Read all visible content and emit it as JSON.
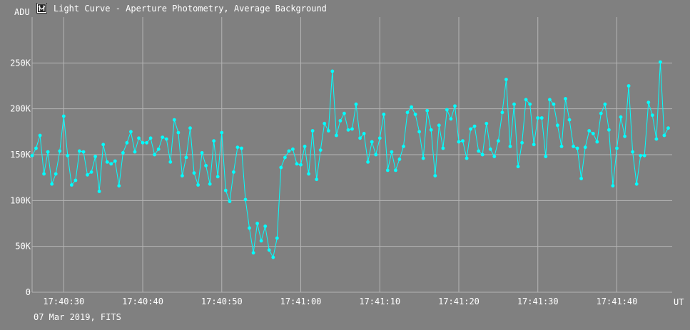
{
  "window": {
    "title": "Light Curve - Aperture Photometry, Average Background",
    "icon": "light-curve-app-icon"
  },
  "footer": {
    "date_source": "07 Mar 2019, FITS"
  },
  "colors": {
    "background": "#808080",
    "grid": "#b4b4b4",
    "series": "#00ffff",
    "text": "#ffffff"
  },
  "chart_data": {
    "type": "line",
    "title": "Light Curve - Aperture Photometry, Average Background",
    "xlabel": "UT",
    "ylabel": "ADU",
    "xlim": [
      "17:40:26.0",
      "17:41:47.0"
    ],
    "ylim": [
      0,
      300000
    ],
    "x_ticks": [
      "17:40:30",
      "17:40:40",
      "17:40:50",
      "17:41:00",
      "17:41:10",
      "17:41:20",
      "17:41:30",
      "17:41:40"
    ],
    "y_ticks": [
      {
        "value": 0,
        "label": "0"
      },
      {
        "value": 50000,
        "label": "50K"
      },
      {
        "value": 100000,
        "label": "100K"
      },
      {
        "value": 150000,
        "label": "150K"
      },
      {
        "value": 200000,
        "label": "200K"
      },
      {
        "value": 250000,
        "label": "250K"
      }
    ],
    "grid": true,
    "series": [
      {
        "markers": "dot",
        "x_start": "17:40:26.0",
        "x_step_seconds": 0.5,
        "values": [
          149000,
          157000,
          171000,
          129000,
          153000,
          118000,
          129000,
          154000,
          192000,
          149000,
          117000,
          122000,
          154000,
          153000,
          128000,
          131000,
          148000,
          110000,
          161000,
          142000,
          140000,
          143000,
          116000,
          152000,
          163000,
          175000,
          153000,
          168000,
          163000,
          163000,
          168000,
          150000,
          156000,
          169000,
          167000,
          142000,
          188000,
          174000,
          127000,
          147000,
          179000,
          130000,
          117000,
          152000,
          138000,
          118000,
          165000,
          126000,
          174000,
          111000,
          99000,
          131000,
          158000,
          157000,
          101000,
          70000,
          43000,
          75000,
          56000,
          72000,
          46000,
          38000,
          59000,
          136000,
          147000,
          154000,
          156000,
          140000,
          139000,
          159000,
          129000,
          176000,
          123000,
          155000,
          184000,
          176000,
          241000,
          171000,
          187000,
          195000,
          177000,
          178000,
          205000,
          168000,
          173000,
          142000,
          164000,
          150000,
          168000,
          194000,
          133000,
          153000,
          133000,
          145000,
          159000,
          196000,
          202000,
          194000,
          175000,
          146000,
          198000,
          177000,
          127000,
          182000,
          157000,
          199000,
          189000,
          203000,
          164000,
          165000,
          146000,
          178000,
          181000,
          154000,
          150000,
          184000,
          156000,
          148000,
          165000,
          196000,
          232000,
          159000,
          205000,
          137000,
          163000,
          210000,
          205000,
          161000,
          190000,
          190000,
          148000,
          210000,
          205000,
          182000,
          159000,
          211000,
          188000,
          159000,
          157000,
          124000,
          158000,
          176000,
          173000,
          164000,
          195000,
          205000,
          177000,
          116000,
          157000,
          191000,
          170000,
          225000,
          153000,
          118000,
          149000,
          149000,
          207000,
          193000,
          167000,
          251000,
          171000,
          179000
        ]
      }
    ]
  }
}
